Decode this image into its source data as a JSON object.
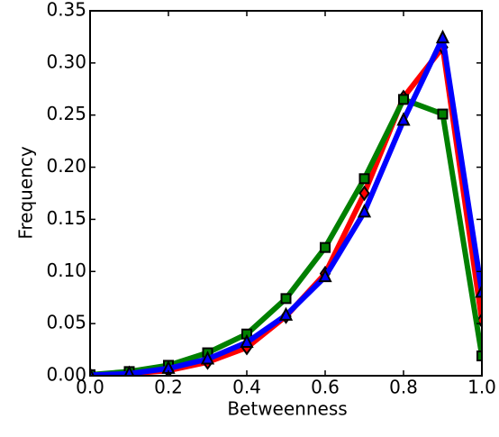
{
  "chart_data": {
    "type": "line",
    "x_label": "Betweenness",
    "y_label": "Frequency",
    "x": [
      0,
      0.1,
      0.2,
      0.3,
      0.4,
      0.5,
      0.6,
      0.7,
      0.8,
      0.9,
      1.0
    ],
    "series": [
      {
        "color": "#ff0000",
        "marker": "diamond",
        "values": [
          0.0005,
          0.002,
          0.005,
          0.013,
          0.027,
          0.057,
          0.098,
          0.175,
          0.267,
          0.315,
          0.053
        ]
      },
      {
        "color": "#008000",
        "marker": "square",
        "values": [
          0.001,
          0.004,
          0.01,
          0.022,
          0.04,
          0.074,
          0.123,
          0.189,
          0.265,
          0.251,
          0.019
        ]
      },
      {
        "color": "#0000ff",
        "marker": "triangle",
        "values": [
          0.0005,
          0.002,
          0.007,
          0.016,
          0.032,
          0.058,
          0.095,
          0.157,
          0.245,
          0.324,
          0.08
        ]
      }
    ],
    "xlim": [
      0,
      1
    ],
    "ylim": [
      0,
      0.35
    ],
    "xticks": [
      {
        "value": 0,
        "label": "0.0"
      },
      0.2,
      0.4,
      0.6,
      0.8,
      {
        "value": 1,
        "label": "1.0"
      }
    ],
    "yticks": [
      {
        "value": 0,
        "label": "0.00"
      },
      {
        "value": 0.05,
        "label": "0.05"
      },
      {
        "value": 0.1,
        "label": "0.10"
      },
      {
        "value": 0.15,
        "label": "0.15"
      },
      {
        "value": 0.2,
        "label": "0.20"
      },
      {
        "value": 0.25,
        "label": "0.25"
      },
      {
        "value": 0.3,
        "label": "0.30"
      },
      {
        "value": 0.35,
        "label": "0.35"
      }
    ],
    "grid": false
  }
}
